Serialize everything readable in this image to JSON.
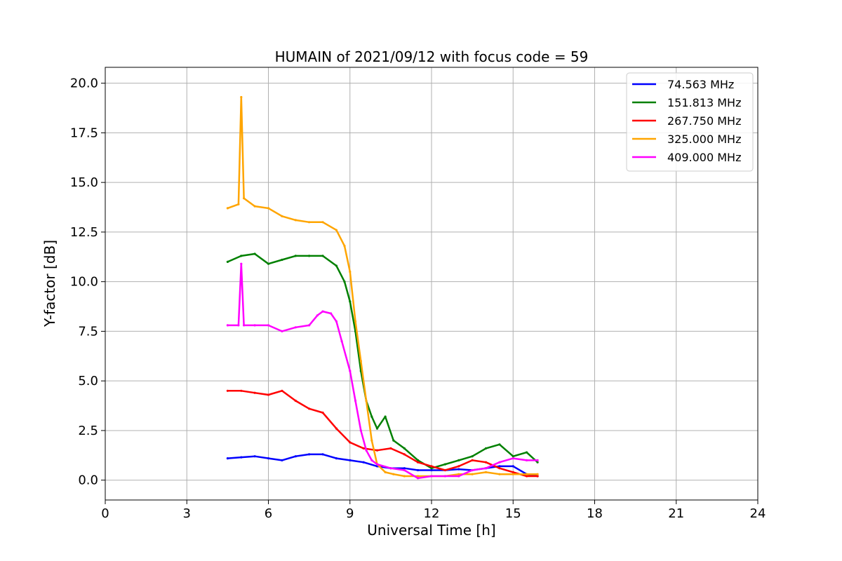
{
  "chart_data": {
    "type": "line",
    "title": "HUMAIN of 2021/09/12 with focus code = 59",
    "xlabel": "Universal Time [h]",
    "ylabel": "Y-factor [dB]",
    "xlim": [
      0,
      24
    ],
    "ylim": [
      -1.0,
      20.8
    ],
    "xticks": [
      0,
      3,
      6,
      9,
      12,
      15,
      18,
      21,
      24
    ],
    "xtick_labels": [
      "0",
      "3",
      "6",
      "9",
      "12",
      "15",
      "18",
      "21",
      "24"
    ],
    "yticks": [
      0,
      2.5,
      5,
      7.5,
      10,
      12.5,
      15,
      17.5,
      20
    ],
    "ytick_labels": [
      "0.0",
      "2.5",
      "5.0",
      "7.5",
      "10.0",
      "12.5",
      "15.0",
      "17.5",
      "20.0"
    ],
    "grid": true,
    "legend_position": "top-right",
    "series": [
      {
        "name": "  74.563 MHz",
        "color": "#0000ff",
        "x": [
          4.5,
          5.0,
          5.5,
          6.0,
          6.5,
          7.0,
          7.5,
          8.0,
          8.5,
          9.0,
          9.5,
          10.0,
          10.5,
          11.0,
          11.5,
          12.0,
          12.5,
          13.0,
          13.5,
          14.0,
          14.5,
          15.0,
          15.5,
          15.9
        ],
        "y": [
          1.1,
          1.15,
          1.2,
          1.1,
          1.0,
          1.2,
          1.3,
          1.3,
          1.1,
          1.0,
          0.9,
          0.7,
          0.6,
          0.6,
          0.5,
          0.5,
          0.5,
          0.55,
          0.5,
          0.6,
          0.7,
          0.7,
          0.3,
          0.2
        ]
      },
      {
        "name": "151.813 MHz",
        "color": "#008000",
        "x": [
          4.5,
          5.0,
          5.5,
          6.0,
          6.5,
          7.0,
          7.5,
          8.0,
          8.5,
          8.8,
          9.0,
          9.2,
          9.4,
          9.6,
          9.8,
          10.0,
          10.3,
          10.6,
          11.0,
          11.5,
          12.0,
          12.5,
          13.0,
          13.5,
          14.0,
          14.5,
          15.0,
          15.5,
          15.9
        ],
        "y": [
          11.0,
          11.3,
          11.4,
          10.9,
          11.1,
          11.3,
          11.3,
          11.3,
          10.8,
          10.0,
          9.0,
          7.5,
          5.5,
          4.0,
          3.2,
          2.6,
          3.2,
          2.0,
          1.6,
          1.0,
          0.6,
          0.8,
          1.0,
          1.2,
          1.6,
          1.8,
          1.2,
          1.4,
          0.9
        ]
      },
      {
        "name": "267.750 MHz",
        "color": "#ff0000",
        "x": [
          4.5,
          5.0,
          5.5,
          6.0,
          6.5,
          7.0,
          7.5,
          8.0,
          8.5,
          9.0,
          9.5,
          10.0,
          10.5,
          11.0,
          11.5,
          12.0,
          12.5,
          13.0,
          13.5,
          14.0,
          14.5,
          15.0,
          15.5,
          15.9
        ],
        "y": [
          4.5,
          4.5,
          4.4,
          4.3,
          4.5,
          4.0,
          3.6,
          3.4,
          2.6,
          1.9,
          1.6,
          1.5,
          1.6,
          1.3,
          0.9,
          0.7,
          0.5,
          0.7,
          1.0,
          0.9,
          0.6,
          0.4,
          0.2,
          0.2
        ]
      },
      {
        "name": "325.000 MHz",
        "color": "#ffa500",
        "x": [
          4.5,
          4.9,
          5.0,
          5.1,
          5.5,
          6.0,
          6.5,
          7.0,
          7.5,
          8.0,
          8.5,
          8.8,
          9.0,
          9.2,
          9.4,
          9.6,
          9.8,
          10.0,
          10.3,
          10.6,
          11.0,
          11.5,
          12.0,
          12.5,
          13.0,
          13.5,
          14.0,
          14.5,
          15.0,
          15.5,
          15.9
        ],
        "y": [
          13.7,
          13.9,
          19.3,
          14.2,
          13.8,
          13.7,
          13.3,
          13.1,
          13.0,
          13.0,
          12.6,
          11.8,
          10.5,
          8.0,
          6.0,
          4.0,
          2.0,
          0.8,
          0.4,
          0.3,
          0.2,
          0.2,
          0.2,
          0.2,
          0.3,
          0.3,
          0.4,
          0.3,
          0.3,
          0.3,
          0.3
        ]
      },
      {
        "name": "409.000 MHz",
        "color": "#ff00ff",
        "x": [
          4.5,
          4.9,
          5.0,
          5.1,
          5.5,
          6.0,
          6.5,
          7.0,
          7.5,
          7.8,
          8.0,
          8.3,
          8.5,
          8.7,
          9.0,
          9.2,
          9.4,
          9.6,
          9.8,
          10.0,
          10.5,
          11.0,
          11.5,
          12.0,
          12.5,
          13.0,
          13.5,
          14.0,
          14.5,
          15.0,
          15.5,
          15.9
        ],
        "y": [
          7.8,
          7.8,
          10.9,
          7.8,
          7.8,
          7.8,
          7.5,
          7.7,
          7.8,
          8.3,
          8.5,
          8.4,
          8.0,
          7.0,
          5.5,
          4.0,
          2.5,
          1.5,
          1.0,
          0.8,
          0.6,
          0.5,
          0.1,
          0.2,
          0.2,
          0.2,
          0.5,
          0.6,
          0.9,
          1.1,
          1.0,
          1.0
        ]
      }
    ]
  }
}
